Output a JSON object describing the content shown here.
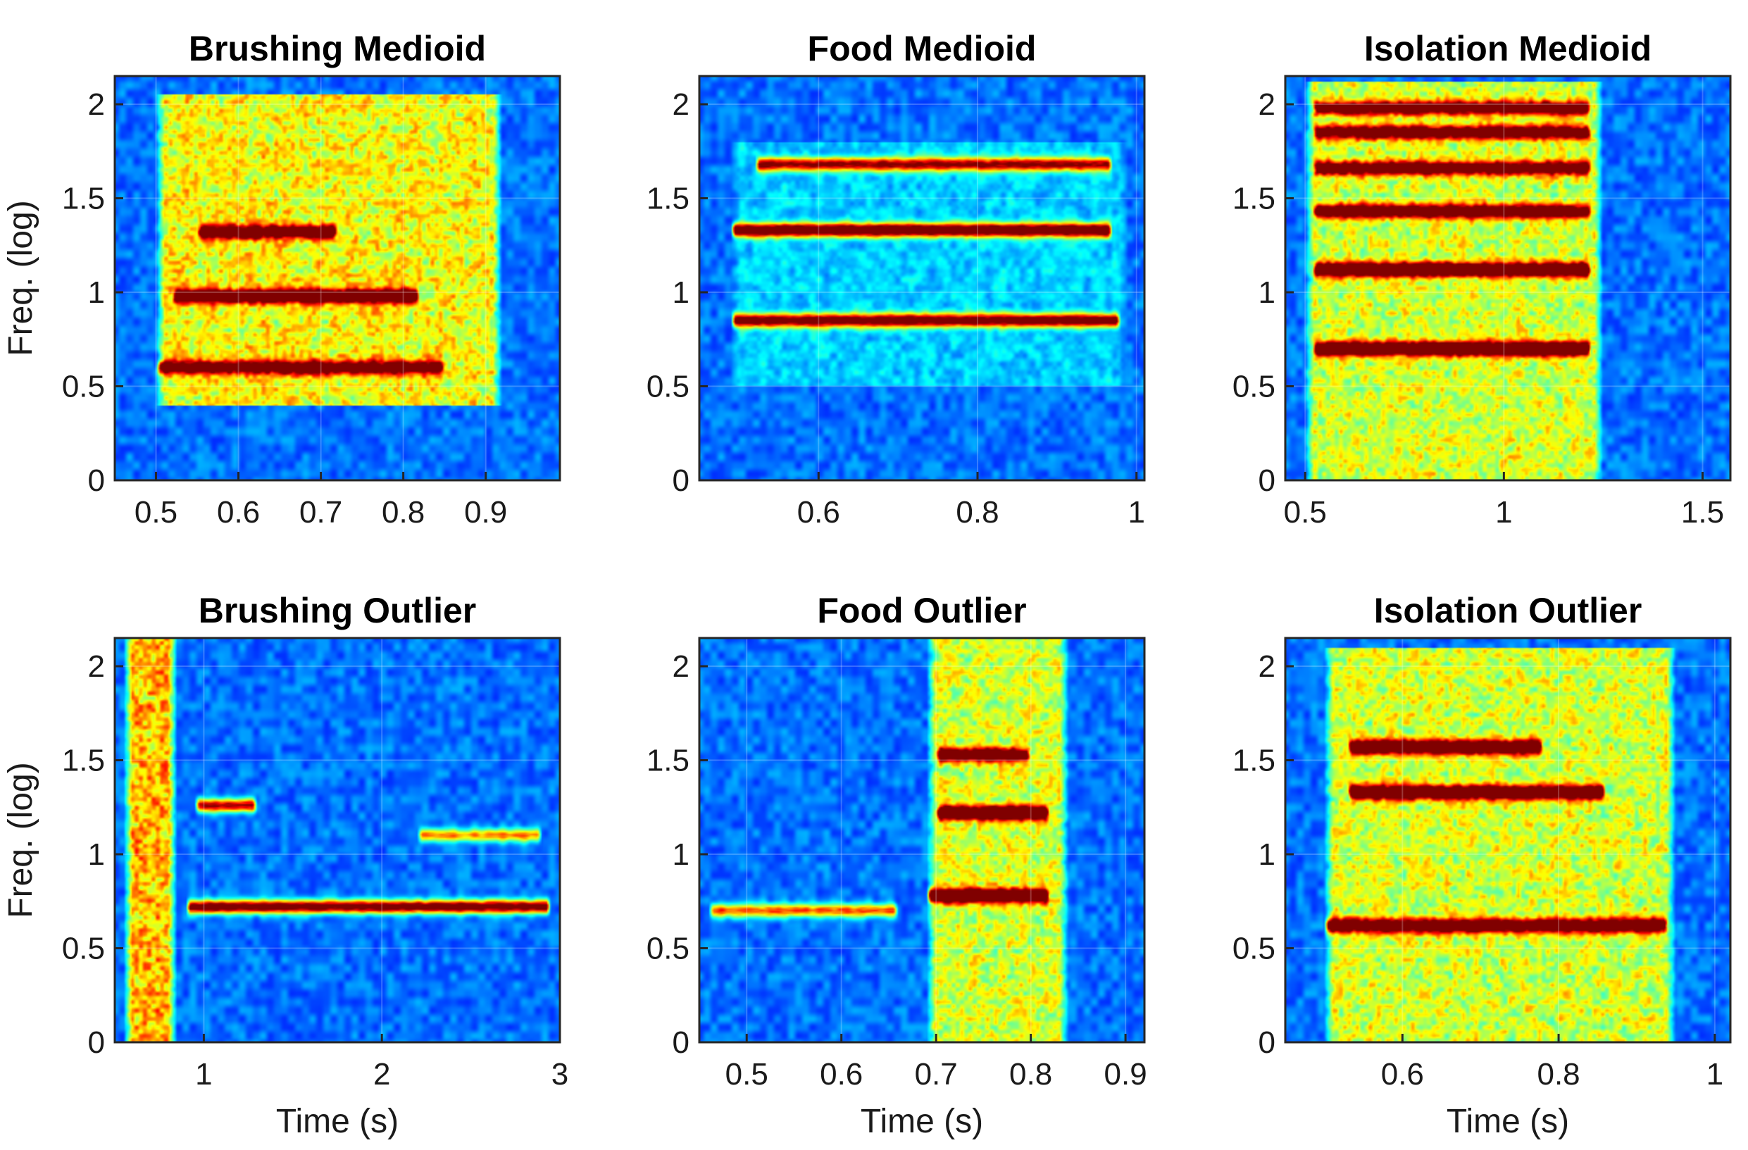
{
  "chart_data": [
    {
      "type": "heatmap",
      "title": "Brushing Medioid",
      "xlabel": "",
      "ylabel": "Freq. (log)",
      "xlim": [
        0.45,
        0.99
      ],
      "ylim": [
        0,
        2.15
      ],
      "xticks": [
        0.5,
        0.6,
        0.7,
        0.8,
        0.9
      ],
      "xtick_labels": [
        "0.5",
        "0.6",
        "0.7",
        "0.8",
        "0.9"
      ],
      "yticks": [
        0,
        0.5,
        1,
        1.5,
        2
      ],
      "ytick_labels": [
        "0",
        "0.5",
        "1",
        "1.5",
        "2"
      ],
      "colormap": "jet",
      "sound_region": {
        "t_start": 0.5,
        "t_end": 0.92,
        "f_low": 0.4,
        "f_high": 2.05,
        "intensity": 0.5
      },
      "bands": [
        {
          "t_start": 0.52,
          "t_end": 0.82,
          "freq": 0.98,
          "intensity": 0.85
        },
        {
          "t_start": 0.55,
          "t_end": 0.72,
          "freq": 1.32,
          "intensity": 0.75
        },
        {
          "t_start": 0.5,
          "t_end": 0.85,
          "freq": 0.6,
          "intensity": 0.7
        }
      ],
      "harmonic_freqs": []
    },
    {
      "type": "heatmap",
      "title": "Food Medioid",
      "xlabel": "",
      "ylabel": "",
      "xlim": [
        0.45,
        1.01
      ],
      "ylim": [
        0,
        2.15
      ],
      "xticks": [
        0.6,
        0.8,
        1
      ],
      "xtick_labels": [
        "0.6",
        "0.8",
        "1"
      ],
      "yticks": [
        0,
        0.5,
        1,
        1.5,
        2
      ],
      "ytick_labels": [
        "0",
        "0.5",
        "1",
        "1.5",
        "2"
      ],
      "colormap": "jet",
      "sound_region": {
        "t_start": 0.49,
        "t_end": 0.99,
        "f_low": 0.5,
        "f_high": 1.8,
        "intensity": 0.12
      },
      "bands": [
        {
          "t_start": 0.49,
          "t_end": 0.98,
          "freq": 0.85,
          "intensity": 0.9
        },
        {
          "t_start": 0.49,
          "t_end": 0.97,
          "freq": 1.33,
          "intensity": 1.0
        },
        {
          "t_start": 0.52,
          "t_end": 0.97,
          "freq": 1.68,
          "intensity": 0.75
        }
      ],
      "harmonic_freqs": []
    },
    {
      "type": "heatmap",
      "title": "Isolation Medioid",
      "xlabel": "",
      "ylabel": "",
      "xlim": [
        0.45,
        1.57
      ],
      "ylim": [
        0,
        2.15
      ],
      "xticks": [
        0.5,
        1,
        1.5
      ],
      "xtick_labels": [
        "0.5",
        "1",
        "1.5"
      ],
      "yticks": [
        0,
        0.5,
        1,
        1.5,
        2
      ],
      "ytick_labels": [
        "0",
        "0.5",
        "1",
        "1.5",
        "2"
      ],
      "colormap": "jet",
      "sound_region": {
        "t_start": 0.5,
        "t_end": 1.25,
        "f_low": 0.0,
        "f_high": 2.12,
        "intensity": 0.45
      },
      "bands": [
        {
          "t_start": 0.52,
          "t_end": 1.22,
          "freq": 0.7,
          "intensity": 1.0
        },
        {
          "t_start": 0.52,
          "t_end": 1.22,
          "freq": 1.12,
          "intensity": 1.0
        },
        {
          "t_start": 0.52,
          "t_end": 1.22,
          "freq": 1.43,
          "intensity": 0.8
        },
        {
          "t_start": 0.52,
          "t_end": 1.22,
          "freq": 1.66,
          "intensity": 0.75
        },
        {
          "t_start": 0.52,
          "t_end": 1.22,
          "freq": 1.85,
          "intensity": 0.75
        },
        {
          "t_start": 0.52,
          "t_end": 1.22,
          "freq": 1.98,
          "intensity": 0.7
        }
      ],
      "harmonic_freqs": []
    },
    {
      "type": "heatmap",
      "title": "Brushing Outlier",
      "xlabel": "Time (s)",
      "ylabel": "Freq. (log)",
      "xlim": [
        0.5,
        3.0
      ],
      "ylim": [
        0,
        2.15
      ],
      "xticks": [
        1,
        2,
        3
      ],
      "xtick_labels": [
        "1",
        "2",
        "3"
      ],
      "yticks": [
        0,
        0.5,
        1,
        1.5,
        2
      ],
      "ytick_labels": [
        "0",
        "0.5",
        "1",
        "1.5",
        "2"
      ],
      "colormap": "jet",
      "sound_region": {
        "t_start": 0.55,
        "t_end": 0.85,
        "f_low": 0.0,
        "f_high": 2.15,
        "intensity": 0.6
      },
      "bands": [
        {
          "t_start": 0.9,
          "t_end": 2.95,
          "freq": 0.72,
          "intensity": 0.95
        },
        {
          "t_start": 0.95,
          "t_end": 1.3,
          "freq": 1.26,
          "intensity": 0.8
        },
        {
          "t_start": 2.2,
          "t_end": 2.9,
          "freq": 1.1,
          "intensity": 0.55
        }
      ],
      "harmonic_freqs": []
    },
    {
      "type": "heatmap",
      "title": "Food Outlier",
      "xlabel": "Time (s)",
      "ylabel": "",
      "xlim": [
        0.45,
        0.92
      ],
      "ylim": [
        0,
        2.15
      ],
      "xticks": [
        0.5,
        0.6,
        0.7,
        0.8,
        0.9
      ],
      "xtick_labels": [
        "0.5",
        "0.6",
        "0.7",
        "0.8",
        "0.9"
      ],
      "yticks": [
        0,
        0.5,
        1,
        1.5,
        2
      ],
      "ytick_labels": [
        "0",
        "0.5",
        "1",
        "1.5",
        "2"
      ],
      "colormap": "jet",
      "sound_region": {
        "t_start": 0.69,
        "t_end": 0.84,
        "f_low": 0.0,
        "f_high": 2.15,
        "intensity": 0.45
      },
      "bands": [
        {
          "t_start": 0.46,
          "t_end": 0.66,
          "freq": 0.7,
          "intensity": 0.6
        },
        {
          "t_start": 0.69,
          "t_end": 0.82,
          "freq": 0.78,
          "intensity": 1.0
        },
        {
          "t_start": 0.7,
          "t_end": 0.82,
          "freq": 1.22,
          "intensity": 1.0
        },
        {
          "t_start": 0.7,
          "t_end": 0.8,
          "freq": 1.53,
          "intensity": 0.75
        }
      ],
      "harmonic_freqs": []
    },
    {
      "type": "heatmap",
      "title": "Isolation Outlier",
      "xlabel": "Time (s)",
      "ylabel": "",
      "xlim": [
        0.45,
        1.02
      ],
      "ylim": [
        0,
        2.15
      ],
      "xticks": [
        0.6,
        0.8,
        1
      ],
      "xtick_labels": [
        "0.6",
        "0.8",
        "1"
      ],
      "yticks": [
        0,
        0.5,
        1,
        1.5,
        2
      ],
      "ytick_labels": [
        "0",
        "0.5",
        "1",
        "1.5",
        "2"
      ],
      "colormap": "jet",
      "sound_region": {
        "t_start": 0.5,
        "t_end": 0.95,
        "f_low": 0.0,
        "f_high": 2.1,
        "intensity": 0.45
      },
      "bands": [
        {
          "t_start": 0.5,
          "t_end": 0.94,
          "freq": 0.62,
          "intensity": 0.85
        },
        {
          "t_start": 0.53,
          "t_end": 0.86,
          "freq": 1.33,
          "intensity": 0.95
        },
        {
          "t_start": 0.53,
          "t_end": 0.78,
          "freq": 1.57,
          "intensity": 0.95
        }
      ],
      "harmonic_freqs": []
    }
  ]
}
